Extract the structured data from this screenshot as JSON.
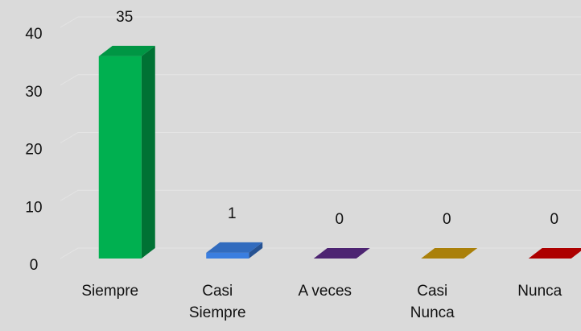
{
  "chart_data": {
    "type": "bar3d",
    "categories": [
      "Siempre",
      "Casi Siempre",
      "A veces",
      "Casi Nunca",
      "Nunca"
    ],
    "values": [
      35,
      1,
      0,
      0,
      0
    ],
    "colors": [
      "#00b050",
      "#3a7ee0",
      "#5b2a86",
      "#c8960c",
      "#cc0000"
    ],
    "ylim": [
      0,
      40
    ],
    "yticks": [
      0,
      10,
      20,
      30,
      40
    ],
    "grid": true
  }
}
